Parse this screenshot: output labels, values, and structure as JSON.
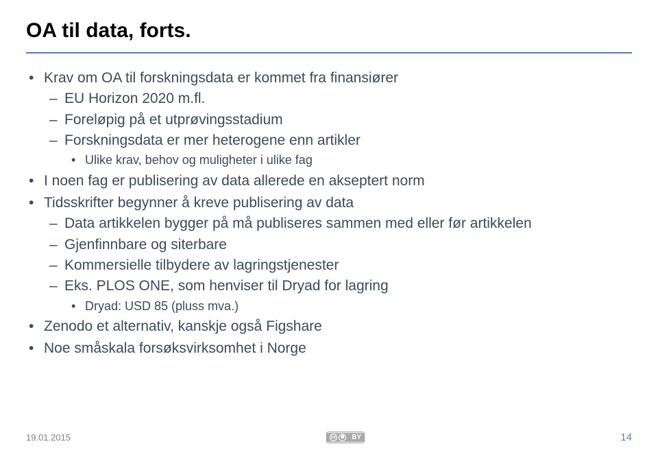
{
  "title": "OA til data, forts.",
  "colors": {
    "title": "#000000",
    "rule": "#5b7fa6",
    "body_text": "#3b4a5a",
    "footer_text": "#808080",
    "page_num": "#5b7fa6",
    "background": "#ffffff"
  },
  "bullets": [
    {
      "text": "Krav om OA til forskningsdata er kommet fra finansiører",
      "children": [
        {
          "text": "EU Horizon 2020 m.fl."
        },
        {
          "text": "Foreløpig på et utprøvingsstadium"
        },
        {
          "text": "Forskningsdata er mer heterogene enn artikler",
          "children": [
            {
              "text": "Ulike krav, behov og muligheter i ulike fag"
            }
          ]
        }
      ]
    },
    {
      "text": "I noen fag er publisering av data allerede en akseptert norm"
    },
    {
      "text": "Tidsskrifter begynner å kreve publisering av data",
      "children": [
        {
          "text": "Data artikkelen bygger på må publiseres sammen med eller før artikkelen"
        },
        {
          "text": "Gjenfinnbare og siterbare"
        },
        {
          "text": "Kommersielle tilbydere av lagringstjenester"
        },
        {
          "text": "Eks. PLOS ONE, som henviser til Dryad for lagring",
          "children": [
            {
              "text": "Dryad: USD 85 (pluss mva.)"
            }
          ]
        }
      ]
    },
    {
      "text": "Zenodo et alternativ, kanskje også Figshare"
    },
    {
      "text": "Noe småskala forsøksvirksomhet i Norge"
    }
  ],
  "footer": {
    "date": "19.01.2015",
    "license_left": "cc",
    "license_right": "BY",
    "page": "14"
  }
}
